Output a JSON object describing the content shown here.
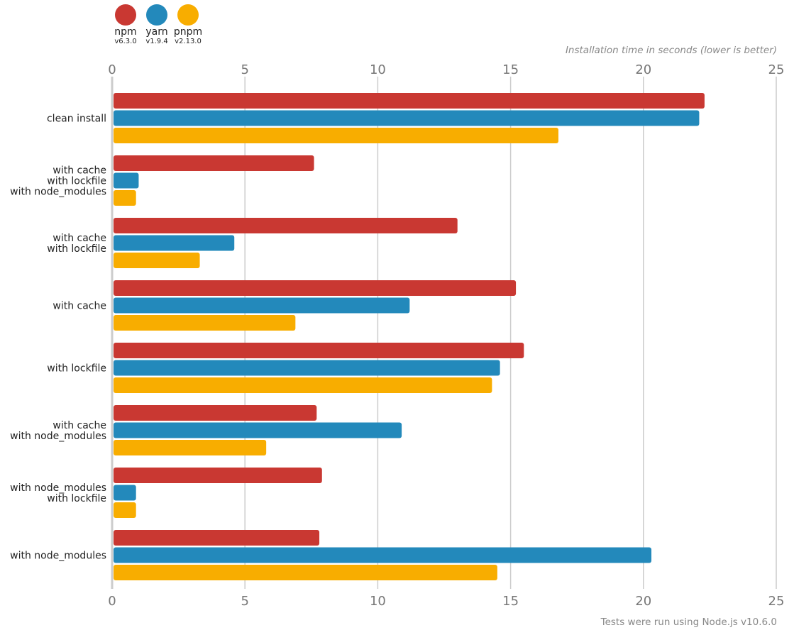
{
  "legend": [
    {
      "name": "npm",
      "version": "v6.3.0",
      "color": "#c93832"
    },
    {
      "name": "yarn",
      "version": "v1.9.4",
      "color": "#2389bb"
    },
    {
      "name": "pnpm",
      "version": "v2.13.0",
      "color": "#f8ad00"
    }
  ],
  "chart_data": {
    "type": "bar",
    "orientation": "horizontal",
    "title": "",
    "xlabel": "Installation time in seconds (lower is better)",
    "ylabel": "",
    "footnote": "Tests were run using Node.js v10.6.0",
    "xlim": [
      0,
      25
    ],
    "xticks": [
      0,
      5,
      10,
      15,
      20,
      25
    ],
    "grid": true,
    "legend_position": "top-left",
    "categories": [
      [
        "clean install"
      ],
      [
        "with cache",
        "with lockfile",
        "with node_modules"
      ],
      [
        "with cache",
        "with lockfile"
      ],
      [
        "with cache"
      ],
      [
        "with lockfile"
      ],
      [
        "with cache",
        "with node_modules"
      ],
      [
        "with node_modules",
        "with lockfile"
      ],
      [
        "with node_modules"
      ]
    ],
    "series": [
      {
        "name": "npm",
        "color": "#c93832",
        "values": [
          22.3,
          7.6,
          13.0,
          15.2,
          15.5,
          7.7,
          7.9,
          7.8
        ]
      },
      {
        "name": "yarn",
        "color": "#2389bb",
        "values": [
          22.1,
          1.0,
          4.6,
          11.2,
          14.6,
          10.9,
          0.9,
          20.3
        ]
      },
      {
        "name": "pnpm",
        "color": "#f8ad00",
        "values": [
          16.8,
          0.9,
          3.3,
          6.9,
          14.3,
          5.8,
          0.9,
          14.5
        ]
      }
    ]
  }
}
